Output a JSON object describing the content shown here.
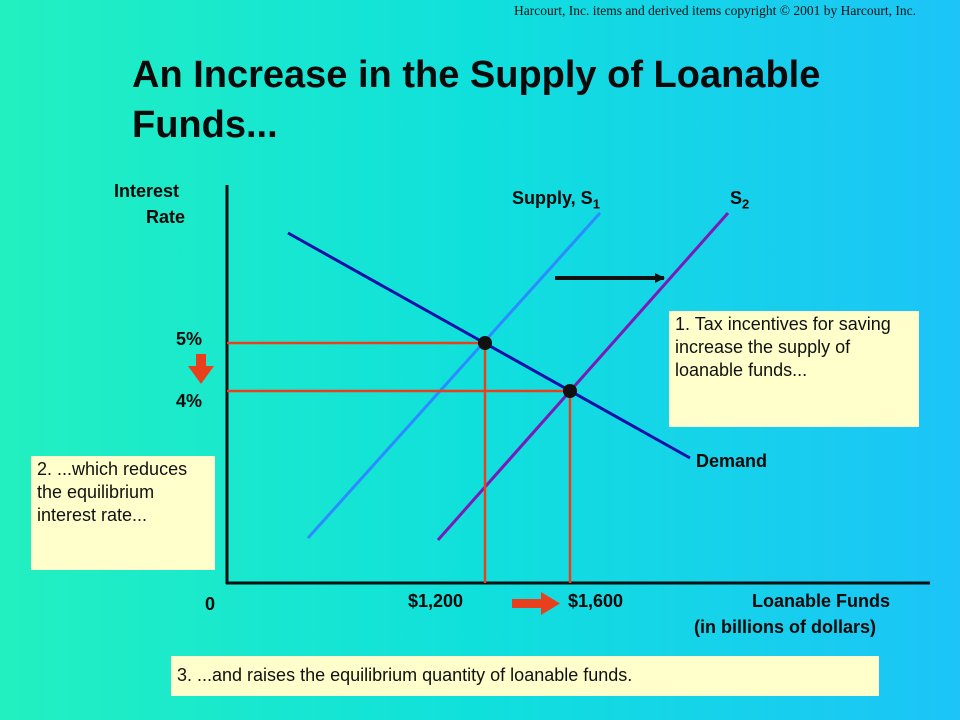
{
  "copyright": "Harcourt, Inc. items and derived items copyright © 2001 by Harcourt, Inc.",
  "title": "An Increase in the Supply of Loanable Funds...",
  "colors": {
    "demand": "#1010a8",
    "supply1": "#2a8cff",
    "supply2": "#7a1ab8",
    "guides": "#e8401c",
    "note_bg": "#ffffcc"
  },
  "chart_data": {
    "type": "line",
    "ylabel_line1": "Interest",
    "ylabel_line2": "Rate",
    "xlabel_line1": "Loanable Funds",
    "xlabel_line2": "(in billions of dollars)",
    "origin_label": "0",
    "y_ticks": [
      "5%",
      "4%"
    ],
    "x_ticks": [
      "$1,200",
      "$1,600"
    ],
    "series": [
      {
        "name": "Demand",
        "label": "Demand"
      },
      {
        "name": "Supply, S1",
        "label_main": "Supply, S",
        "label_sub": "1"
      },
      {
        "name": "S2",
        "label_main": "S",
        "label_sub": "2"
      }
    ],
    "equilibria": [
      {
        "quantity": 1200,
        "rate": 5
      },
      {
        "quantity": 1600,
        "rate": 4
      }
    ]
  },
  "notes": {
    "note1": "1. Tax incentives for saving increase the supply of loanable funds...",
    "note2": "2. ...which reduces the equilibrium interest rate...",
    "note3": "3. ...and raises the equilibrium quantity of loanable funds."
  }
}
